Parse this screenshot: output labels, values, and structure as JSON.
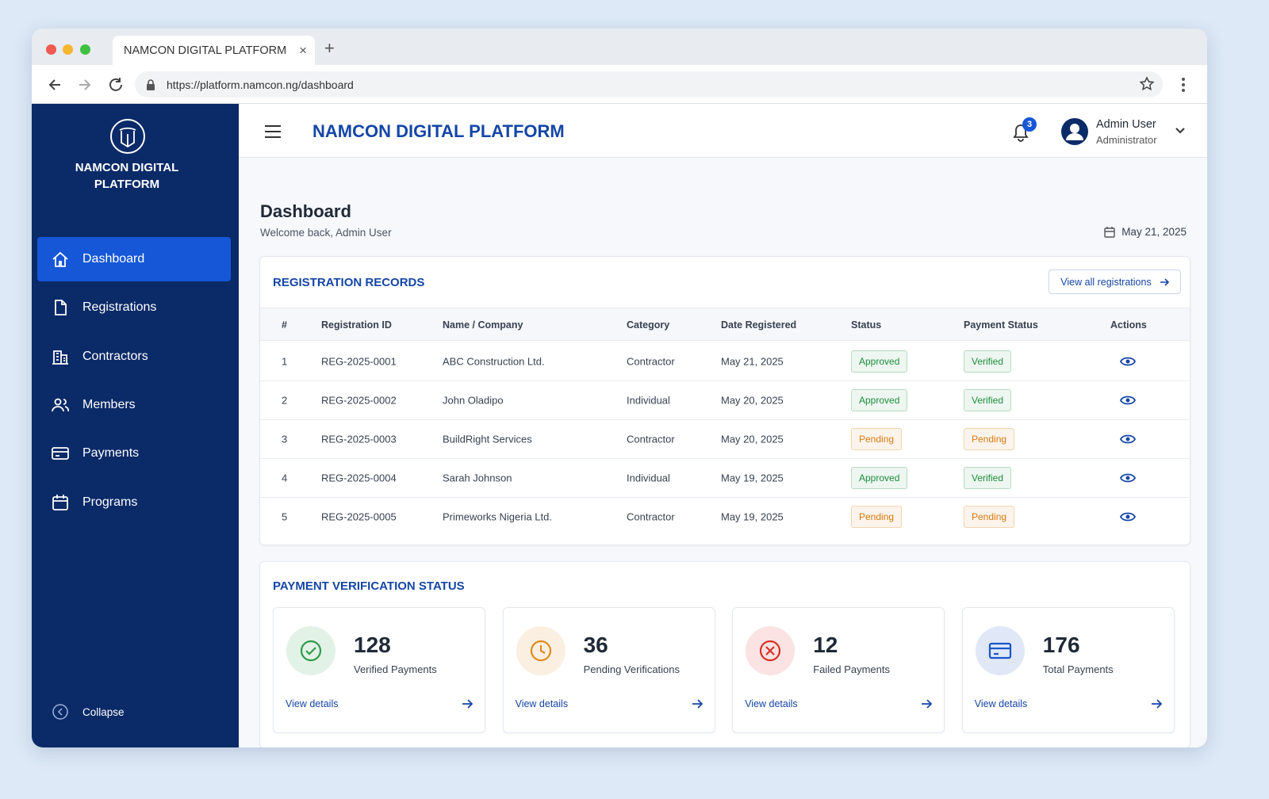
{
  "browser": {
    "tab_title": "NAMCON DIGITAL PLATFORM",
    "url": "https://platform.namcon.ng/dashboard"
  },
  "sidebar": {
    "brand": "NAMCON DIGITAL PLATFORM",
    "nav": [
      "Dashboard",
      "Registrations",
      "Contractors",
      "Members",
      "Payments",
      "Programs"
    ],
    "collapse": "Collapse"
  },
  "header": {
    "title": "NAMCON DIGITAL PLATFORM",
    "notifications": 3,
    "user_name": "Admin User",
    "user_role": "Administrator"
  },
  "page": {
    "title": "Dashboard",
    "subtitle": "Welcome back, Admin User",
    "date": "May 21, 2025"
  },
  "registrations": {
    "title": "REGISTRATION RECORDS",
    "link": "View all registrations",
    "columns": [
      "#",
      "Registration ID",
      "Name / Company",
      "Category",
      "Date Registered",
      "Status",
      "Payment Status",
      "Actions"
    ],
    "rows": [
      [
        1,
        "REG-2025-0001",
        "ABC Construction Ltd.",
        "Contractor",
        "May 21, 2025",
        {
          "label": "Approved",
          "color": "#1e8e3e"
        },
        {
          "label": "Verified",
          "color": "#1e8e3e"
        }
      ],
      [
        2,
        "REG-2025-0002",
        "John Oladipo",
        "Individual",
        "May 20, 2025",
        {
          "label": "Approved",
          "color": "#1e8e3e"
        },
        {
          "label": "Verified",
          "color": "#1e8e3e"
        }
      ],
      [
        3,
        "REG-2025-0003",
        "BuildRight Services",
        "Contractor",
        "May 20, 2025",
        {
          "label": "Pending",
          "color": "#d9790e"
        },
        {
          "label": "Pending",
          "color": "#d9790e"
        }
      ],
      [
        4,
        "REG-2025-0004",
        "Sarah Johnson",
        "Individual",
        "May 19, 2025",
        {
          "label": "Approved",
          "color": "#1e8e3e"
        },
        {
          "label": "Verified",
          "color": "#1e8e3e"
        }
      ],
      [
        5,
        "REG-2025-0005",
        "Primeworks Nigeria Ltd.",
        "Contractor",
        "May 19, 2025",
        {
          "label": "Pending",
          "color": "#d9790e"
        },
        {
          "label": "Pending",
          "color": "#d9790e"
        }
      ]
    ]
  },
  "payments": {
    "title": "PAYMENT VERIFICATION STATUS",
    "cards": [
      {
        "value": 128,
        "label": "Verified Payments",
        "link": "View details",
        "color": "#2e9a4a"
      },
      {
        "value": 36,
        "label": "Pending Verifications",
        "link": "View details",
        "color": "#e08a1e"
      },
      {
        "value": 12,
        "label": "Failed Payments",
        "link": "View details",
        "color": "#d93025"
      },
      {
        "value": 176,
        "label": "Total Payments",
        "link": "View details",
        "color": "#1a56c8"
      }
    ]
  }
}
